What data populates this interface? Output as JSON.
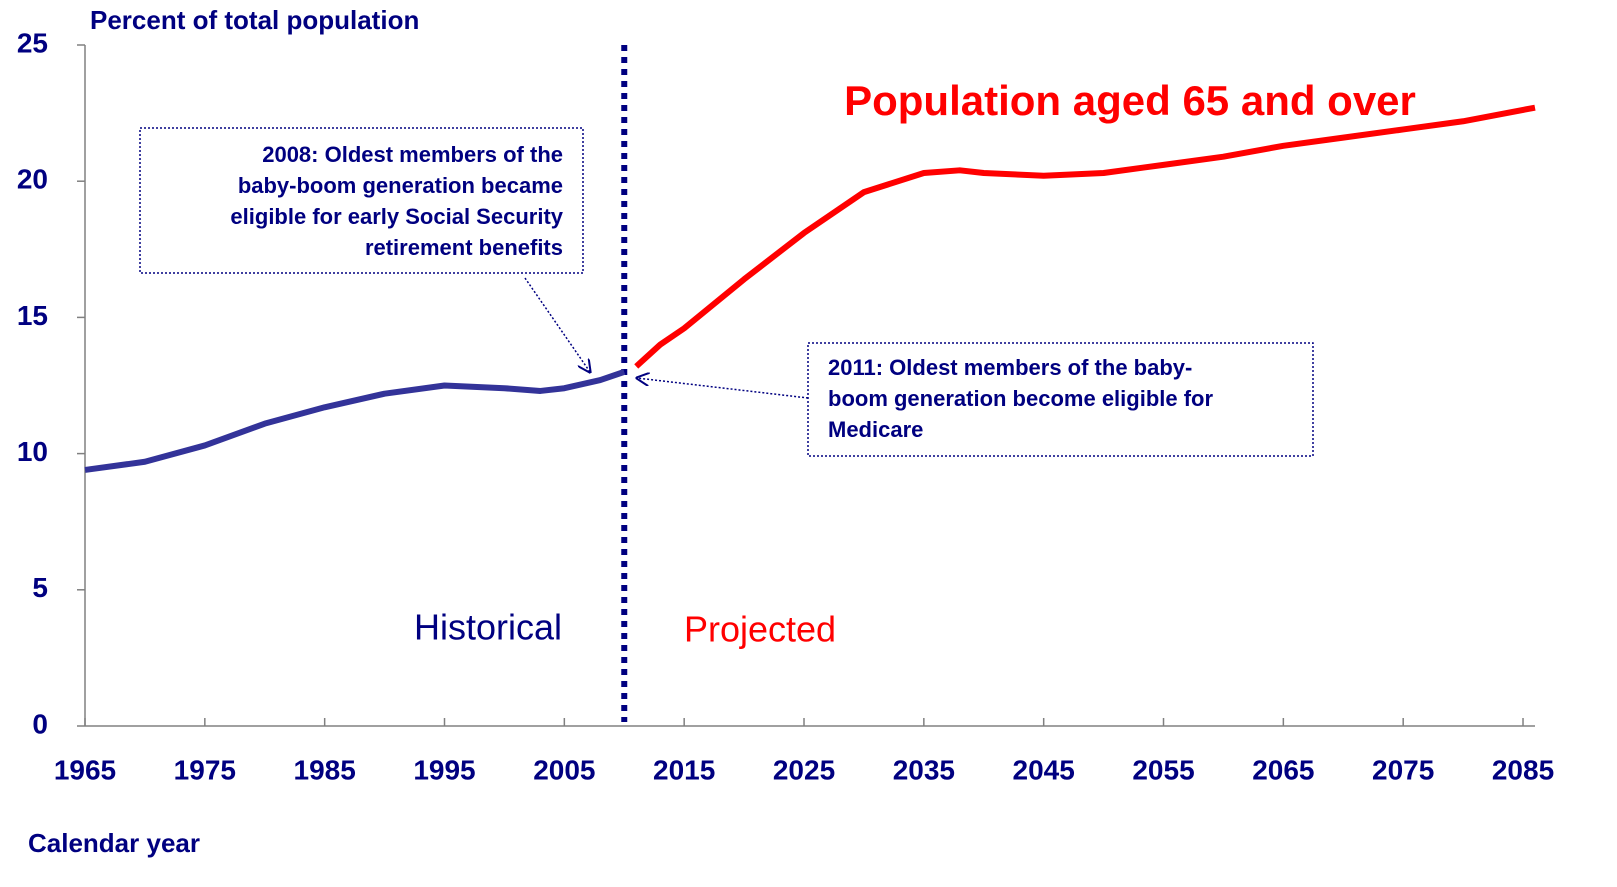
{
  "chart_data": {
    "type": "line",
    "title": "Population aged 65 and over",
    "y_label": "Percent of total population",
    "x_label": "Calendar year",
    "xlim": [
      1965,
      2086
    ],
    "ylim": [
      0,
      25
    ],
    "xticks": [
      1965,
      1975,
      1985,
      1995,
      2005,
      2015,
      2025,
      2035,
      2045,
      2055,
      2065,
      2075,
      2085
    ],
    "yticks": [
      0,
      5,
      10,
      15,
      20,
      25
    ],
    "divider_x": 2010,
    "series": [
      {
        "name": "Historical",
        "color": "#333399",
        "x": [
          1965,
          1970,
          1975,
          1980,
          1985,
          1990,
          1995,
          2000,
          2003,
          2005,
          2008,
          2010
        ],
        "values": [
          9.4,
          9.7,
          10.3,
          11.1,
          11.7,
          12.2,
          12.5,
          12.4,
          12.3,
          12.4,
          12.7,
          13.0
        ]
      },
      {
        "name": "Projected",
        "color": "#ff0000",
        "x": [
          2011,
          2013,
          2015,
          2020,
          2025,
          2030,
          2035,
          2038,
          2040,
          2045,
          2050,
          2055,
          2060,
          2065,
          2070,
          2075,
          2080,
          2086
        ],
        "values": [
          13.2,
          14.0,
          14.6,
          16.4,
          18.1,
          19.6,
          20.3,
          20.4,
          20.3,
          20.2,
          20.3,
          20.6,
          20.9,
          21.3,
          21.6,
          21.9,
          22.2,
          22.7
        ]
      }
    ],
    "annotations": [
      {
        "lines": [
          "2008: Oldest members of the",
          "baby-boom generation became",
          "eligible for early Social Security",
          "retirement benefits"
        ]
      },
      {
        "lines": [
          "2011: Oldest members of the baby-",
          "boom generation become eligible for",
          "Medicare"
        ]
      }
    ]
  }
}
